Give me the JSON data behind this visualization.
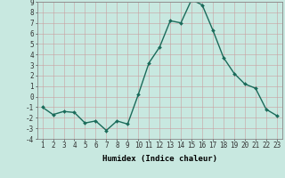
{
  "x": [
    1,
    2,
    3,
    4,
    5,
    6,
    7,
    8,
    9,
    10,
    11,
    12,
    13,
    14,
    15,
    16,
    17,
    18,
    19,
    20,
    21,
    22,
    23
  ],
  "y": [
    -1,
    -1.7,
    -1.4,
    -1.5,
    -2.5,
    -2.3,
    -3.2,
    -2.3,
    -2.6,
    0.2,
    3.2,
    4.7,
    7.2,
    7.0,
    9.2,
    8.7,
    6.3,
    3.7,
    2.2,
    1.2,
    0.8,
    -1.2,
    -1.8
  ],
  "line_color": "#1a6b5a",
  "marker": "D",
  "marker_size": 2.0,
  "bg_color": "#c8e8e0",
  "grid_color": "#aacec8",
  "grid_color_minor": "#c0ddd8",
  "xlabel": "Humidex (Indice chaleur)",
  "xlabel_fontsize": 6.5,
  "tick_fontsize": 5.5,
  "ylim": [
    -4,
    9
  ],
  "xlim": [
    0.5,
    23.5
  ],
  "yticks": [
    -4,
    -3,
    -2,
    -1,
    0,
    1,
    2,
    3,
    4,
    5,
    6,
    7,
    8,
    9
  ],
  "xticks": [
    1,
    2,
    3,
    4,
    5,
    6,
    7,
    8,
    9,
    10,
    11,
    12,
    13,
    14,
    15,
    16,
    17,
    18,
    19,
    20,
    21,
    22,
    23
  ],
  "line_width": 1.0,
  "fig_bg_color": "#c8e8e0",
  "spine_color": "#888888"
}
